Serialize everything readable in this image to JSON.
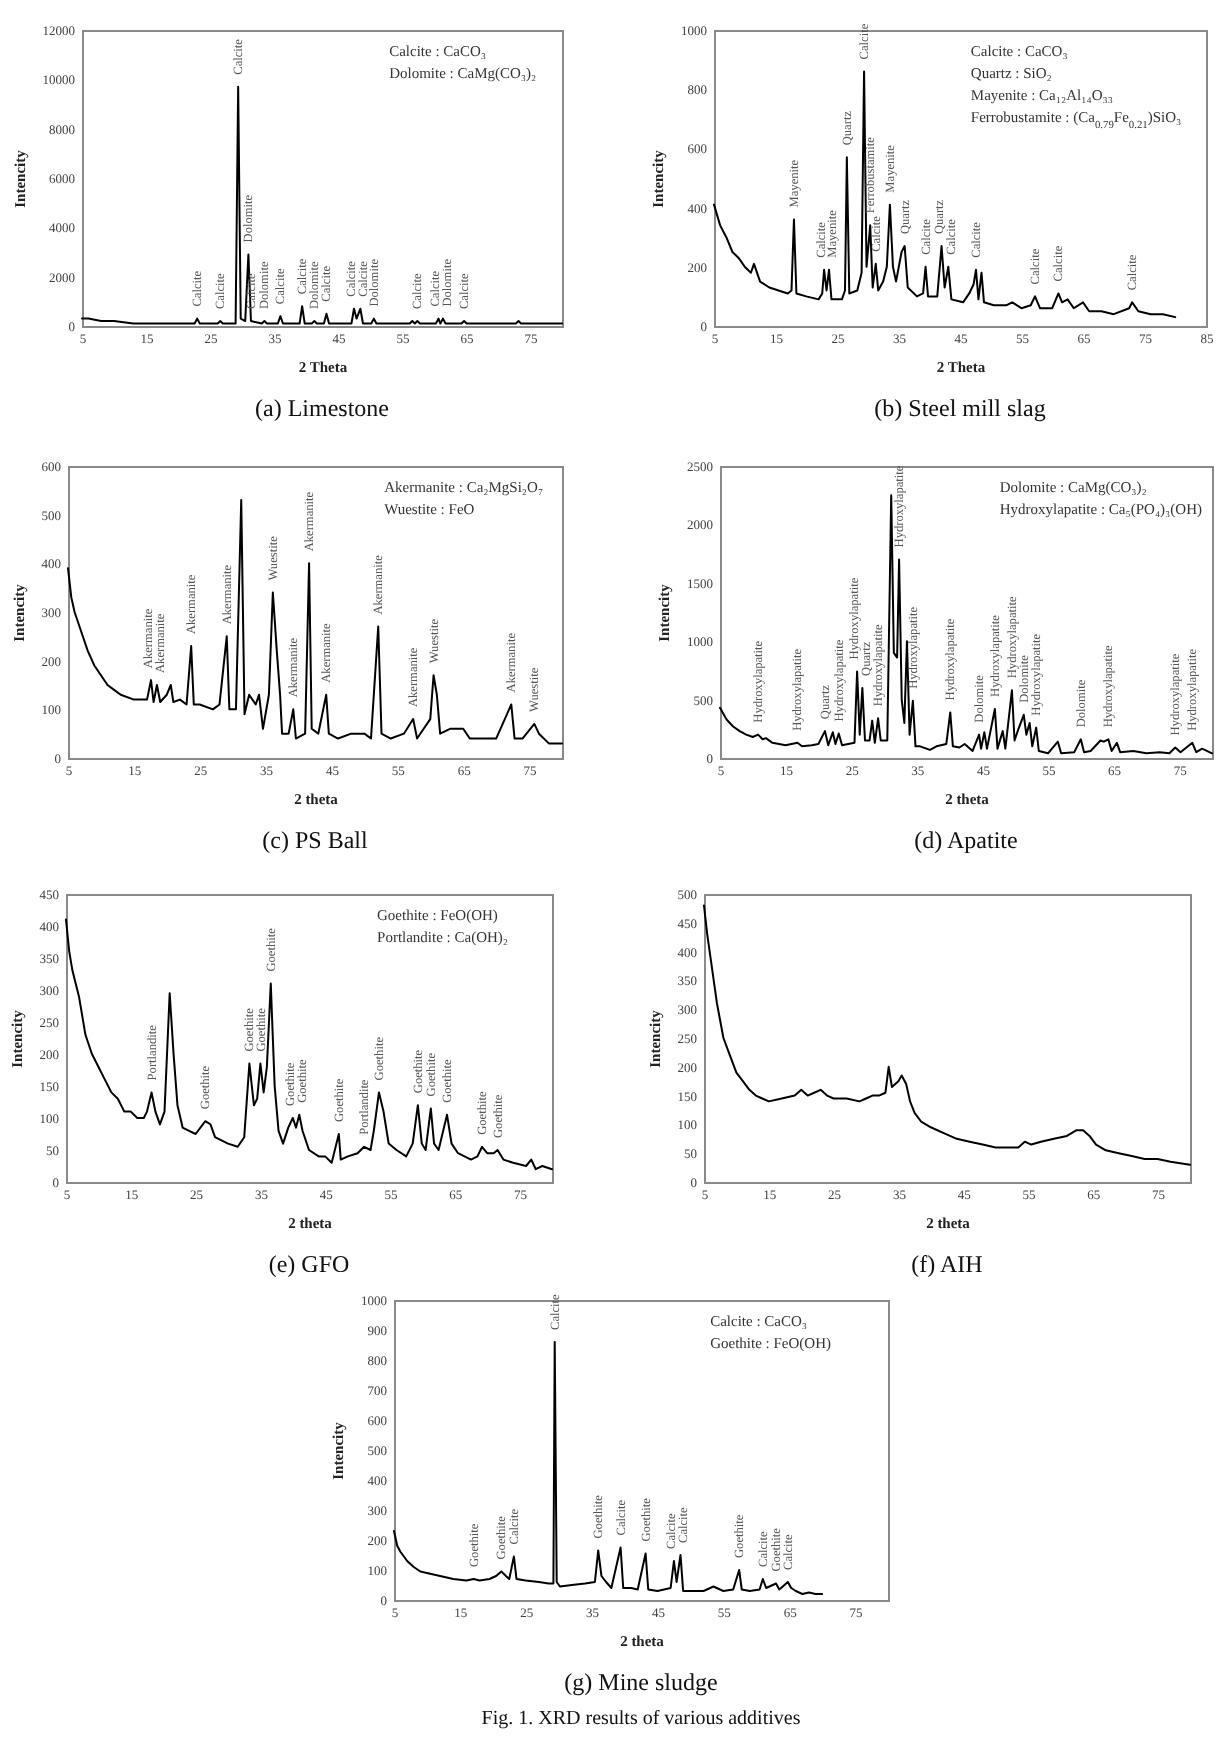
{
  "chart_data": [
    {
      "type": "line",
      "title": "(a) Limestone",
      "xlabel": "2 Theta",
      "ylabel": "Intencity",
      "xlim": [
        5,
        80
      ],
      "xticks": [
        5,
        15,
        25,
        35,
        45,
        55,
        65,
        75
      ],
      "ylim": [
        0,
        12000
      ],
      "yticks": [
        0,
        2000,
        4000,
        6000,
        8000,
        10000,
        12000
      ],
      "color": "#000000",
      "x": [
        5,
        6,
        8,
        10,
        13,
        16,
        20,
        22.6,
        23,
        23.4,
        26.2,
        26.6,
        27,
        29,
        29.4,
        29.8,
        30.5,
        31,
        31.4,
        33.1,
        33.5,
        33.9,
        35.6,
        36,
        36.4,
        39,
        39.4,
        39.8,
        40.9,
        41.3,
        41.7,
        42.8,
        43.2,
        43.6,
        47.1,
        47.5,
        47.9,
        48.5,
        48.9,
        50.2,
        50.6,
        51,
        56.2,
        56.6,
        57,
        57.4,
        57.8,
        60.3,
        60.7,
        61,
        61.4,
        61.8,
        64.3,
        64.7,
        65.1,
        72.8,
        73.2,
        73.6,
        80
      ],
      "values": [
        300,
        300,
        200,
        200,
        100,
        100,
        100,
        100,
        300,
        100,
        100,
        200,
        100,
        100,
        9700,
        300,
        200,
        2900,
        200,
        100,
        200,
        100,
        100,
        400,
        100,
        100,
        800,
        100,
        100,
        200,
        100,
        100,
        500,
        100,
        100,
        700,
        300,
        700,
        100,
        100,
        300,
        100,
        100,
        200,
        100,
        200,
        100,
        100,
        300,
        100,
        300,
        100,
        100,
        200,
        100,
        100,
        200,
        100,
        100
      ],
      "annotations": [
        "Calcite : CaCO₃",
        "Dolomite : CaMg(CO₃)₂",
        {
          "text": "Calcite",
          "x": 23,
          "y": 300
        },
        {
          "text": "Calcite",
          "x": 26.6,
          "y": 200
        },
        {
          "text": "Calcite",
          "x": 29.4,
          "y": 9700
        },
        {
          "text": "Dolomite",
          "x": 31,
          "y": 2900
        },
        {
          "text": "Calcite",
          "x": 31.4,
          "y": 200
        },
        {
          "text": "Dolomite",
          "x": 33.5,
          "y": 200
        },
        {
          "text": "Calcite",
          "x": 36,
          "y": 400
        },
        {
          "text": "Calcite",
          "x": 39.4,
          "y": 800
        },
        {
          "text": "Dolomite",
          "x": 41.3,
          "y": 200
        },
        {
          "text": "Calcite",
          "x": 43.2,
          "y": 500
        },
        {
          "text": "Calcite",
          "x": 47.5,
          "y": 700
        },
        {
          "text": "Calcite",
          "x": 48.5,
          "y": 700
        },
        {
          "text": "Dolomite",
          "x": 50.6,
          "y": 300
        },
        {
          "text": "Calcite",
          "x": 57.4,
          "y": 200
        },
        {
          "text": "Calcite",
          "x": 60.7,
          "y": 300
        },
        {
          "text": "Dolomite",
          "x": 61.4,
          "y": 300
        },
        {
          "text": "Calcite",
          "x": 64.7,
          "y": 200
        }
      ]
    },
    {
      "type": "line",
      "title": "(b) Steel mill slag",
      "xlabel": "2 Theta",
      "ylabel": "Intencity",
      "xlim": [
        5,
        85
      ],
      "xticks": [
        5,
        15,
        25,
        35,
        45,
        55,
        65,
        75,
        85
      ],
      "ylim": [
        0,
        1000
      ],
      "yticks": [
        0,
        200,
        400,
        600,
        800,
        1000
      ],
      "color": "#000000",
      "x": [
        5,
        6,
        7,
        8,
        9,
        10,
        11,
        11.5,
        12.5,
        14,
        15.5,
        17,
        17.6,
        18,
        18.4,
        20,
        22,
        22.6,
        22.9,
        23.3,
        23.7,
        24.1,
        25.8,
        26.3,
        26.6,
        27,
        28.3,
        29,
        29.4,
        29.8,
        30.4,
        30.8,
        31.3,
        31.7,
        32.5,
        33.1,
        33.6,
        34.1,
        34.6,
        35.5,
        36,
        36.5,
        38,
        39,
        39.4,
        39.8,
        41.3,
        42,
        42.5,
        43.1,
        43.6,
        45.5,
        46.5,
        47.2,
        47.6,
        48,
        48.5,
        48.9,
        50.5,
        52.5,
        53.5,
        55,
        56.5,
        57.2,
        58,
        60,
        61,
        61.6,
        62.5,
        63.5,
        65,
        66,
        68,
        70,
        72.5,
        73,
        74,
        76,
        78,
        80
      ],
      "values": [
        410,
        340,
        300,
        250,
        230,
        200,
        180,
        210,
        150,
        130,
        120,
        110,
        120,
        360,
        110,
        100,
        90,
        110,
        190,
        120,
        190,
        90,
        90,
        120,
        570,
        110,
        120,
        180,
        860,
        200,
        340,
        130,
        210,
        120,
        150,
        200,
        410,
        200,
        150,
        250,
        270,
        130,
        100,
        110,
        200,
        100,
        100,
        270,
        130,
        200,
        90,
        80,
        110,
        140,
        190,
        90,
        180,
        80,
        70,
        70,
        80,
        60,
        70,
        100,
        60,
        60,
        110,
        80,
        90,
        60,
        80,
        50,
        50,
        40,
        60,
        80,
        50,
        40,
        40,
        30
      ],
      "annotations": [
        "Calcite : CaCO₃",
        "Quartz : SiO₂",
        "Mayenite : Ca₁₂Al₁₄O₃₃",
        "Ferrobustamite : (Ca$_{0.79}$Fe$_{0.21}$)SiO₃",
        {
          "text": "Mayenite",
          "x": 18,
          "y": 360
        },
        {
          "text": "Calcite",
          "x": 22.9,
          "y": 190
        },
        {
          "text": "Mayenite",
          "x": 23.7,
          "y": 190
        },
        {
          "text": "Quartz",
          "x": 26.6,
          "y": 570
        },
        {
          "text": "Calcite",
          "x": 29.4,
          "y": 860
        },
        {
          "text": "Ferrobustamite",
          "x": 30.4,
          "y": 340
        },
        {
          "text": "Calcite",
          "x": 31.3,
          "y": 210
        },
        {
          "text": "Mayenite",
          "x": 33.6,
          "y": 410
        },
        {
          "text": "Quartz",
          "x": 36,
          "y": 270
        },
        {
          "text": "Calcite",
          "x": 39.4,
          "y": 200
        },
        {
          "text": "Quartz",
          "x": 42,
          "y": 270
        },
        {
          "text": "Calcite",
          "x": 43.1,
          "y": 200
        },
        {
          "text": "Calcite",
          "x": 47.6,
          "y": 190
        },
        {
          "text": "Calcite",
          "x": 57.2,
          "y": 100
        },
        {
          "text": "Calcite",
          "x": 61,
          "y": 110
        },
        {
          "text": "Calcite",
          "x": 73,
          "y": 80
        }
      ]
    },
    {
      "type": "line",
      "title": "(c) PS Ball",
      "xlabel": "2 theta",
      "ylabel": "Intencity",
      "xlim": [
        5,
        80
      ],
      "xticks": [
        5,
        15,
        25,
        35,
        45,
        55,
        65,
        75
      ],
      "ylim": [
        0,
        600
      ],
      "yticks": [
        0,
        100,
        200,
        300,
        400,
        500,
        600
      ],
      "color": "#000000",
      "x": [
        5,
        5.5,
        6,
        7,
        8,
        9,
        10,
        11,
        12,
        13,
        15,
        17,
        17.6,
        18,
        18.5,
        19,
        20,
        20.6,
        21,
        22,
        23,
        23.7,
        24.1,
        25,
        27,
        28,
        29.1,
        29.5,
        30.5,
        31.3,
        31.8,
        32.5,
        33.5,
        34,
        34.6,
        35.5,
        36.1,
        36.7,
        37.2,
        37.5,
        38.5,
        39.2,
        39.6,
        41,
        41.6,
        42,
        43,
        44.2,
        44.6,
        46,
        48,
        50,
        51,
        52.1,
        52.6,
        54,
        56,
        57.4,
        58,
        59,
        60,
        60.5,
        61,
        61.5,
        63,
        65,
        66,
        68,
        70,
        72.3,
        72.8,
        74,
        75.8,
        76.5,
        78,
        80
      ],
      "values": [
        390,
        330,
        300,
        260,
        220,
        190,
        170,
        150,
        140,
        130,
        120,
        120,
        160,
        115,
        150,
        115,
        130,
        150,
        115,
        120,
        110,
        230,
        110,
        110,
        100,
        110,
        250,
        100,
        100,
        530,
        90,
        130,
        110,
        130,
        60,
        130,
        340,
        220,
        130,
        50,
        50,
        100,
        40,
        50,
        400,
        60,
        50,
        130,
        50,
        40,
        50,
        50,
        40,
        270,
        50,
        40,
        50,
        80,
        40,
        60,
        80,
        170,
        130,
        50,
        60,
        60,
        40,
        40,
        40,
        110,
        40,
        40,
        70,
        50,
        30,
        30
      ],
      "annotations": [
        "Akermanite : Ca₂MgSi₂O₇",
        "Wuestite : FeO",
        {
          "text": "Akermanite",
          "x": 17.6,
          "y": 160
        },
        {
          "text": "Akermanite",
          "x": 18.5,
          "y": 150
        },
        {
          "text": "Akermanite",
          "x": 23.7,
          "y": 230
        },
        {
          "text": "Akermanite",
          "x": 29.1,
          "y": 250
        },
        {
          "text": "Wuestite",
          "x": 36.1,
          "y": 340
        },
        {
          "text": "Akermanite",
          "x": 39.2,
          "y": 100
        },
        {
          "text": "Akermanite",
          "x": 41.6,
          "y": 400
        },
        {
          "text": "Akermanite",
          "x": 44.2,
          "y": 130
        },
        {
          "text": "Akermanite",
          "x": 52.1,
          "y": 270
        },
        {
          "text": "Akermanite",
          "x": 57.4,
          "y": 80
        },
        {
          "text": "Wuestite",
          "x": 60.5,
          "y": 170
        },
        {
          "text": "Akermanite",
          "x": 72.3,
          "y": 110
        },
        {
          "text": "Wuestite",
          "x": 75.8,
          "y": 70
        }
      ]
    },
    {
      "type": "line",
      "title": "(d) Apatite",
      "xlabel": "2 theta",
      "ylabel": "Intencity",
      "xlim": [
        5,
        80
      ],
      "xticks": [
        5,
        15,
        25,
        35,
        45,
        55,
        65,
        75
      ],
      "ylim": [
        0,
        2500
      ],
      "yticks": [
        0,
        500,
        1000,
        1500,
        2000,
        2500
      ],
      "color": "#000000",
      "x": [
        5,
        6,
        7,
        8,
        9,
        10,
        10.8,
        11.5,
        12,
        13,
        15,
        16.8,
        17.5,
        19,
        20,
        21,
        21.5,
        22.2,
        22.6,
        23.1,
        23.6,
        25.5,
        25.9,
        26.3,
        26.7,
        27.1,
        27.8,
        28.2,
        28.6,
        29.1,
        29.5,
        30.5,
        31.1,
        31.5,
        32,
        32.3,
        32.7,
        33.1,
        33.5,
        33.9,
        34.4,
        34.8,
        35.5,
        37,
        38,
        39.5,
        40.1,
        40.5,
        41.5,
        42.3,
        43.5,
        44.5,
        44.8,
        45.3,
        45.7,
        46.9,
        47.3,
        48.1,
        48.5,
        49.5,
        49.9,
        50.5,
        51.3,
        51.7,
        52.2,
        52.6,
        53.2,
        53.6,
        55,
        56.5,
        57,
        59,
        60,
        60.5,
        61.5,
        63,
        63.5,
        64.2,
        64.7,
        65.5,
        66,
        68,
        70,
        72,
        73.5,
        74.4,
        75.2,
        77,
        77.6,
        78.5,
        80
      ],
      "values": [
        430,
        330,
        270,
        230,
        200,
        180,
        200,
        160,
        170,
        130,
        110,
        130,
        100,
        110,
        120,
        230,
        110,
        220,
        120,
        210,
        110,
        130,
        740,
        200,
        600,
        150,
        150,
        320,
        130,
        340,
        150,
        150,
        2250,
        900,
        860,
        1700,
        500,
        300,
        1000,
        200,
        490,
        100,
        100,
        70,
        100,
        120,
        390,
        100,
        90,
        120,
        60,
        200,
        80,
        220,
        80,
        420,
        80,
        230,
        80,
        580,
        150,
        250,
        370,
        200,
        300,
        100,
        260,
        60,
        40,
        140,
        40,
        50,
        160,
        50,
        60,
        150,
        140,
        160,
        60,
        130,
        50,
        60,
        40,
        50,
        40,
        90,
        50,
        130,
        50,
        80,
        40
      ],
      "annotations": [
        "Dolomite : CaMg(CO₃)₂",
        "Hydroxylapatite : Ca₅(PO₄)₃(OH)",
        {
          "text": "Hydroxylapatite",
          "x": 10.8,
          "y": 200
        },
        {
          "text": "Hydroxylapatite",
          "x": 16.8,
          "y": 130
        },
        {
          "text": "Quartz",
          "x": 21,
          "y": 230
        },
        {
          "text": "Hydroxylapatite",
          "x": 23.1,
          "y": 210
        },
        {
          "text": "Hydroxylapatite",
          "x": 25.9,
          "y": 740
        },
        {
          "text": "Quartz",
          "x": 26.7,
          "y": 600
        },
        {
          "text": "Hydroxylapatite",
          "x": 29.1,
          "y": 340
        },
        {
          "text": "Hydroxylapatite",
          "x": 32.3,
          "y": 1700
        },
        {
          "text": "Hydroxylapatite",
          "x": 34.4,
          "y": 490
        },
        {
          "text": "Hydroxylapatite",
          "x": 40.1,
          "y": 390
        },
        {
          "text": "Dolomite",
          "x": 44.5,
          "y": 200
        },
        {
          "text": "Hydroxylapatite",
          "x": 46.9,
          "y": 420
        },
        {
          "text": "Hydroxylapatite",
          "x": 49.5,
          "y": 580
        },
        {
          "text": "Dolomite",
          "x": 51.3,
          "y": 370
        },
        {
          "text": "Hydroxylapatite",
          "x": 53.2,
          "y": 260
        },
        {
          "text": "Dolomite",
          "x": 60,
          "y": 160
        },
        {
          "text": "Hydroxylapatite",
          "x": 64.2,
          "y": 160
        },
        {
          "text": "Hydroxylapatite",
          "x": 74.4,
          "y": 90
        },
        {
          "text": "Hydroxylapatite",
          "x": 77,
          "y": 130
        }
      ]
    },
    {
      "type": "line",
      "title": "(e) GFO",
      "xlabel": "2 theta",
      "ylabel": "Intencity",
      "xlim": [
        5,
        80
      ],
      "xticks": [
        5,
        15,
        25,
        35,
        45,
        55,
        65,
        75
      ],
      "ylim": [
        0,
        450
      ],
      "yticks": [
        0,
        50,
        100,
        150,
        200,
        250,
        300,
        350,
        400,
        450
      ],
      "color": "#000000",
      "x": [
        5,
        5.5,
        6,
        7,
        8,
        9,
        10,
        11,
        12,
        13,
        14,
        15,
        16,
        17,
        17.5,
        18.2,
        18.8,
        19.5,
        20.2,
        21,
        21.6,
        22.2,
        23,
        24,
        25,
        26.5,
        27.3,
        28,
        30,
        31.5,
        32.5,
        33.3,
        34,
        34.5,
        35,
        35.5,
        36,
        36.6,
        37.2,
        37.8,
        38.5,
        39.3,
        40,
        40.5,
        41,
        41.5,
        42.5,
        44,
        45,
        46,
        47.1,
        47.4,
        48.5,
        50,
        51,
        52,
        52.5,
        53.3,
        54,
        54.8,
        56,
        57.5,
        58.5,
        59.3,
        59.9,
        60.5,
        61.3,
        61.8,
        62.5,
        63.8,
        64.5,
        65.5,
        66.5,
        67.5,
        68.5,
        69.2,
        70,
        71,
        71.6,
        72.5,
        74,
        76,
        76.8,
        77.5,
        78.5,
        80
      ],
      "values": [
        410,
        360,
        330,
        290,
        230,
        200,
        180,
        160,
        140,
        130,
        110,
        110,
        100,
        100,
        110,
        140,
        110,
        90,
        110,
        295,
        200,
        120,
        85,
        80,
        75,
        95,
        90,
        70,
        60,
        55,
        70,
        185,
        120,
        130,
        185,
        140,
        180,
        310,
        150,
        80,
        60,
        85,
        100,
        85,
        105,
        80,
        50,
        40,
        40,
        30,
        75,
        35,
        40,
        45,
        55,
        50,
        80,
        140,
        110,
        60,
        50,
        40,
        60,
        120,
        60,
        50,
        115,
        60,
        50,
        105,
        60,
        45,
        40,
        35,
        40,
        55,
        45,
        45,
        50,
        35,
        30,
        25,
        35,
        20,
        25,
        20
      ],
      "annotations": [
        "Goethite : FeO(OH)",
        "Portlandite : Ca(OH)₂",
        {
          "text": "Portlandite",
          "x": 18.2,
          "y": 140
        },
        {
          "text": "Goethite",
          "x": 26.5,
          "y": 95
        },
        {
          "text": "Goethite",
          "x": 33.3,
          "y": 185
        },
        {
          "text": "Goethite",
          "x": 35,
          "y": 185
        },
        {
          "text": "Goethite",
          "x": 36.6,
          "y": 310
        },
        {
          "text": "Goethite",
          "x": 40,
          "y": 100
        },
        {
          "text": "Goethite",
          "x": 41,
          "y": 105
        },
        {
          "text": "Goethite",
          "x": 47.1,
          "y": 75
        },
        {
          "text": "Portlandite",
          "x": 51,
          "y": 55
        },
        {
          "text": "Goethite",
          "x": 53.3,
          "y": 140
        },
        {
          "text": "Goethite",
          "x": 59.3,
          "y": 120
        },
        {
          "text": "Goethite",
          "x": 61.3,
          "y": 115
        },
        {
          "text": "Goethite",
          "x": 63.8,
          "y": 105
        },
        {
          "text": "Goethite",
          "x": 69.2,
          "y": 55
        },
        {
          "text": "Goethite",
          "x": 71.6,
          "y": 50
        }
      ]
    },
    {
      "type": "line",
      "title": "(f) AIH",
      "xlabel": "2 theta",
      "ylabel": "Intencity",
      "xlim": [
        5,
        80
      ],
      "xticks": [
        5,
        15,
        25,
        35,
        45,
        55,
        65,
        75
      ],
      "ylim": [
        0,
        500
      ],
      "yticks": [
        0,
        50,
        100,
        150,
        200,
        250,
        300,
        350,
        400,
        450,
        500
      ],
      "color": "#000000",
      "x": [
        5,
        5.5,
        6,
        6.5,
        7,
        7.5,
        8,
        9,
        10,
        11,
        12,
        13,
        14,
        15,
        17,
        19,
        20,
        21,
        22,
        23,
        24,
        25,
        27,
        29,
        30,
        31,
        32,
        33,
        33.5,
        34,
        35,
        35.5,
        36.2,
        36.8,
        37.5,
        38.5,
        40,
        42,
        44,
        46,
        48,
        50,
        52,
        53.5,
        54.5,
        55.5,
        57,
        59,
        61,
        62.5,
        63.5,
        64.5,
        65.5,
        67,
        69,
        71,
        73,
        75,
        77,
        80
      ],
      "values": [
        480,
        430,
        390,
        350,
        310,
        280,
        250,
        220,
        190,
        175,
        160,
        150,
        145,
        140,
        145,
        150,
        160,
        150,
        155,
        160,
        150,
        145,
        145,
        140,
        145,
        150,
        150,
        155,
        200,
        165,
        175,
        185,
        170,
        140,
        120,
        105,
        95,
        85,
        75,
        70,
        65,
        60,
        60,
        60,
        70,
        65,
        70,
        75,
        80,
        90,
        90,
        80,
        65,
        55,
        50,
        45,
        40,
        40,
        35,
        30
      ]
    },
    {
      "type": "line",
      "title": "(g) Mine sludge",
      "subtitle": "Fig. 1. XRD results of various additives",
      "xlabel": "2 theta",
      "ylabel": "Intencity",
      "xlim": [
        5,
        80
      ],
      "xticks": [
        5,
        15,
        25,
        35,
        45,
        55,
        65,
        75
      ],
      "ylim": [
        0,
        1000
      ],
      "yticks": [
        0,
        100,
        200,
        300,
        400,
        500,
        600,
        700,
        800,
        900,
        1000
      ],
      "color": "#000000",
      "x": [
        5,
        5.5,
        6,
        7,
        8,
        9,
        10,
        12,
        14,
        16,
        17.1,
        18,
        19.5,
        20.5,
        21.3,
        22,
        22.5,
        23.2,
        23.6,
        25,
        27,
        28.5,
        29.2,
        29.4,
        29.7,
        30.2,
        32,
        34,
        35.5,
        36,
        36.5,
        37.2,
        38,
        39.4,
        39.8,
        41,
        42,
        43.2,
        43.6,
        45,
        47,
        47.5,
        47.9,
        48.5,
        48.9,
        50,
        52,
        53.5,
        55,
        56.5,
        57.4,
        57.8,
        59,
        60.5,
        61,
        61.5,
        63,
        63.5,
        64.8,
        65.3,
        66,
        67,
        68,
        69,
        70
      ],
      "values": [
        230,
        180,
        160,
        130,
        110,
        95,
        90,
        80,
        70,
        65,
        70,
        65,
        70,
        80,
        95,
        80,
        70,
        145,
        70,
        65,
        60,
        55,
        55,
        860,
        60,
        45,
        50,
        55,
        60,
        165,
        80,
        60,
        40,
        175,
        40,
        40,
        35,
        155,
        35,
        30,
        40,
        130,
        60,
        150,
        30,
        30,
        30,
        45,
        30,
        35,
        100,
        35,
        30,
        35,
        70,
        40,
        55,
        35,
        60,
        40,
        30,
        20,
        25,
        20,
        20
      ],
      "annotations": [
        "Calcite : CaCO₃",
        "Goethite : FeO(OH)",
        {
          "text": "Goethite",
          "x": 17.1,
          "y": 70
        },
        {
          "text": "Goethite",
          "x": 21.3,
          "y": 95
        },
        {
          "text": "Calcite",
          "x": 23.2,
          "y": 145
        },
        {
          "text": "Calcite",
          "x": 29.4,
          "y": 860
        },
        {
          "text": "Goethite",
          "x": 36,
          "y": 165
        },
        {
          "text": "Calcite",
          "x": 39.4,
          "y": 175
        },
        {
          "text": "Goethite",
          "x": 43.2,
          "y": 155
        },
        {
          "text": "Calcite",
          "x": 47.5,
          "y": 130
        },
        {
          "text": "Calcite",
          "x": 48.5,
          "y": 150
        },
        {
          "text": "Goethite",
          "x": 57.4,
          "y": 100
        },
        {
          "text": "Calcite",
          "x": 61,
          "y": 70
        },
        {
          "text": "Goethite",
          "x": 63,
          "y": 55
        },
        {
          "text": "Calcite",
          "x": 64.8,
          "y": 60
        }
      ]
    }
  ]
}
